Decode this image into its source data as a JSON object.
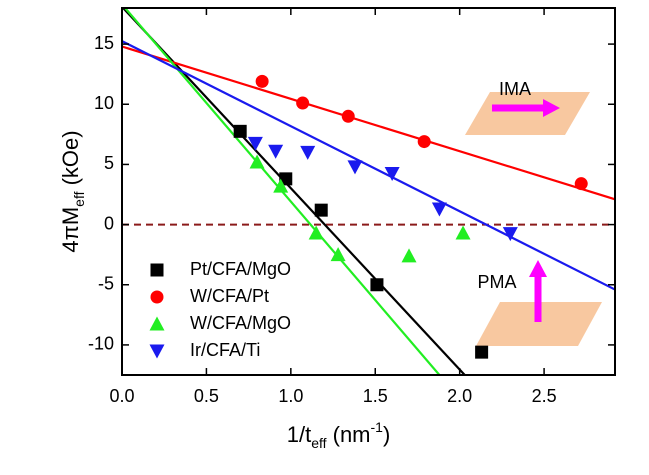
{
  "chart_data": {
    "type": "scatter",
    "y_label": {
      "main": "4πM",
      "sub": "eff",
      "unit": " (kOe)"
    },
    "x_label": {
      "main": "1/t",
      "sub": "eff",
      "unit": " (nm",
      "sup": "-1",
      "close": ")"
    },
    "xlim": [
      0,
      2.92
    ],
    "ylim": [
      -12.5,
      18
    ],
    "xticks": [
      {
        "value": 0,
        "label": "0.0"
      },
      {
        "value": 0.5,
        "label": "0.5"
      },
      {
        "value": 1,
        "label": "1.0"
      },
      {
        "value": 1.5,
        "label": "1.5"
      },
      {
        "value": 2,
        "label": "2.0"
      },
      {
        "value": 2.5,
        "label": "2.5"
      }
    ],
    "yticks": [
      -10,
      -5,
      0,
      5,
      10,
      15
    ],
    "hline": 0,
    "hline_color": "#8b1a1a",
    "annotations": [
      "IMA",
      "PMA"
    ],
    "series": [
      {
        "name": "Pt/CFA/MgO",
        "color": "#000000",
        "marker": "square",
        "x": [
          0.7,
          0.97,
          1.18,
          1.51,
          2.13
        ],
        "values": [
          7.75,
          3.8,
          1.2,
          -5.0,
          -10.6
        ],
        "fit": {
          "x": [
            0,
            2.03
          ],
          "y": [
            18.1,
            -12.5
          ]
        }
      },
      {
        "name": "W/CFA/Pt",
        "color": "#ff0000",
        "marker": "circle",
        "x": [
          0.83,
          1.07,
          1.34,
          1.79,
          2.72
        ],
        "values": [
          11.9,
          10.1,
          9.0,
          6.9,
          3.4
        ],
        "fit": {
          "x": [
            0,
            2.92
          ],
          "y": [
            14.8,
            2.1
          ]
        }
      },
      {
        "name": "W/CFA/MgO",
        "color": "#22ee22",
        "marker": "triangle-up",
        "x": [
          0.8,
          0.94,
          1.15,
          1.28,
          1.7,
          2.02
        ],
        "values": [
          5.2,
          3.2,
          -0.7,
          -2.5,
          -2.6,
          -0.7
        ],
        "fit": {
          "x": [
            0,
            1.88
          ],
          "y": [
            18.3,
            -12.5
          ]
        }
      },
      {
        "name": "Ir/CFA/Ti",
        "color": "#1a1aee",
        "marker": "triangle-down",
        "x": [
          0.79,
          0.91,
          1.1,
          1.38,
          1.6,
          1.88,
          2.3
        ],
        "values": [
          6.75,
          6.1,
          6.0,
          4.8,
          4.25,
          1.3,
          -0.75
        ],
        "fit": {
          "x": [
            0,
            2.92
          ],
          "y": [
            15.25,
            -5.4
          ]
        }
      }
    ]
  }
}
